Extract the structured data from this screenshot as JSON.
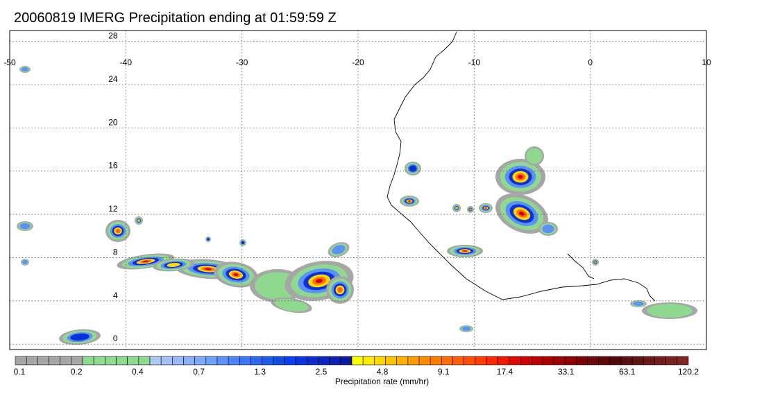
{
  "title": "20060819 IMERG Precipitation ending at 01:59:59 Z",
  "map": {
    "lon_range": [
      -50,
      10
    ],
    "lat_range": [
      -0.5,
      29
    ],
    "lon_ticks": [
      "-50",
      "-40",
      "-30",
      "-20",
      "-10",
      "0",
      "10"
    ],
    "lat_ticks": [
      "28",
      "24",
      "20",
      "16",
      "12",
      "8",
      "4",
      "0"
    ],
    "grid": "dotted"
  },
  "colorbar": {
    "label": "Precipitation rate (mm/hr)",
    "tick_labels": [
      "0.1",
      "0.2",
      "0.4",
      "0.7",
      "1.3",
      "2.5",
      "4.8",
      "9.1",
      "17.4",
      "33.1",
      "63.1",
      "120.2"
    ],
    "colors": [
      "#a6a6a6",
      "#a6a6a6",
      "#a6a6a6",
      "#a6a6a6",
      "#a6a6a6",
      "#a6a6a6",
      "#8fd98f",
      "#8fd98f",
      "#8fd98f",
      "#8fd98f",
      "#8fd98f",
      "#8fd98f",
      "#b0c8f8",
      "#a4c0f8",
      "#98b8f8",
      "#8cb0f8",
      "#80a8f8",
      "#70a0f8",
      "#5c92f8",
      "#4c84f8",
      "#3c76f8",
      "#2c68f0",
      "#1c5ae8",
      "#104ce0",
      "#0a3cf0",
      "#0a34e0",
      "#0a2cd0",
      "#0a26c0",
      "#0a20b0",
      "#0a1aa0",
      "#ffff00",
      "#ffec00",
      "#ffd800",
      "#ffc400",
      "#ffb000",
      "#ff9c00",
      "#ff8c00",
      "#ff7c00",
      "#ff6c00",
      "#ff5c00",
      "#ff4c00",
      "#ff3c00",
      "#ff2800",
      "#ef1800",
      "#df0800",
      "#cf0000",
      "#bf0000",
      "#af0000",
      "#9f0000",
      "#8f0000",
      "#7f0000",
      "#6f0808",
      "#5f0808",
      "#4f0808",
      "#5a1010",
      "#621414",
      "#6a1818",
      "#721c1c",
      "#7a2020",
      "#802424"
    ]
  },
  "precip_colors": {
    "trace": "#a6a6a6",
    "light": "#8fd98f",
    "moderate": "#5c92f8",
    "heavy": "#0a30d8",
    "intense": "#ffd800",
    "very_intense": "#ff6c00",
    "extreme": "#cf0000"
  }
}
